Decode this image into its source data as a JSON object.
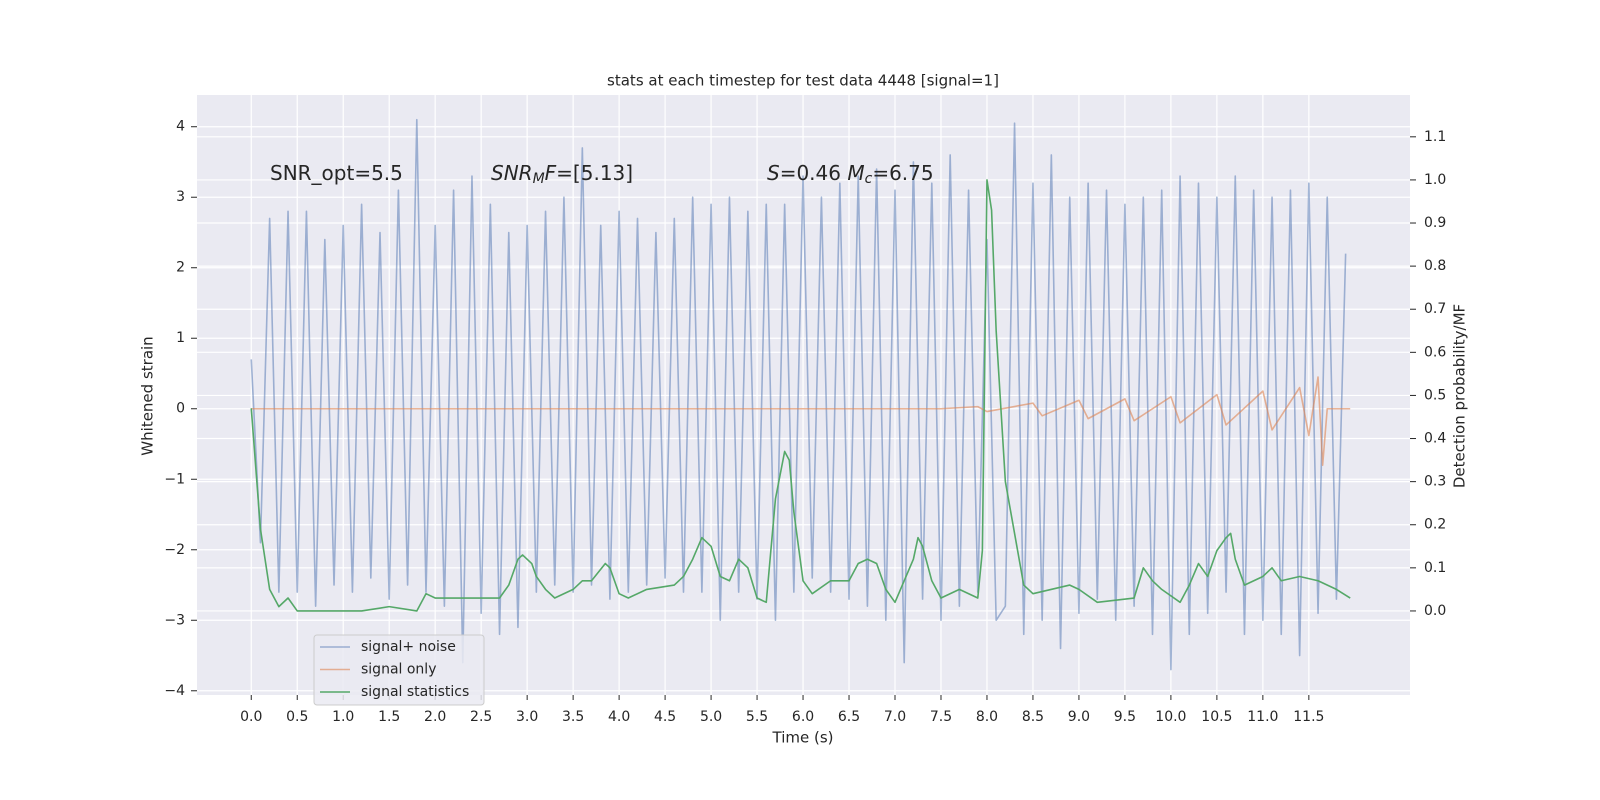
{
  "chart_data": {
    "type": "line",
    "title": "stats at each timestep for test data 4448 [signal=1]",
    "xlabel": "Time (s)",
    "ylabel": "Whitened strain",
    "y2label": "Detection probability/MF",
    "xlim": [
      -0.59,
      12.6
    ],
    "ylim": [
      -4.06,
      4.45
    ],
    "y2lim": [
      -0.195,
      1.197
    ],
    "xticks": [
      {
        "value": 0,
        "label": "0.0"
      },
      0.5,
      {
        "value": 1,
        "label": "1.0"
      },
      1.5,
      {
        "value": 2,
        "label": "2.0"
      },
      2.5,
      {
        "value": 3,
        "label": "3.0"
      },
      3.5,
      {
        "value": 4,
        "label": "4.0"
      },
      4.5,
      {
        "value": 5,
        "label": "5.0"
      },
      5.5,
      {
        "value": 6,
        "label": "6.0"
      },
      6.5,
      {
        "value": 7,
        "label": "7.0"
      },
      7.5,
      {
        "value": 8,
        "label": "8.0"
      },
      8.5,
      {
        "value": 9,
        "label": "9.0"
      },
      9.5,
      {
        "value": 10,
        "label": "10.0"
      },
      10.5,
      {
        "value": 11,
        "label": "11.0"
      },
      11.5
    ],
    "yticks": [
      {
        "value": -4,
        "label": "−4"
      },
      {
        "value": -3,
        "label": "−3"
      },
      {
        "value": -2,
        "label": "−2"
      },
      {
        "value": -1,
        "label": "−1"
      },
      0,
      1,
      2,
      3,
      4
    ],
    "y2ticks": [
      {
        "value": 0,
        "label": "0.0"
      },
      0.1,
      0.2,
      0.3,
      0.4,
      0.5,
      0.6,
      0.7,
      0.8,
      0.9,
      {
        "value": 1,
        "label": "1.0"
      },
      1.1
    ],
    "grid": true,
    "legend": "lower left",
    "annotations": [
      [
        {
          "text": "SNR_opt=5.5"
        }
      ],
      [
        {
          "text": "SNR",
          "italic": true
        },
        {
          "text": "M",
          "italic": true,
          "sub": true
        },
        {
          "text": "F",
          "italic": true
        },
        {
          "text": "=[5.13]"
        }
      ],
      [
        {
          "text": "S",
          "italic": true
        },
        {
          "text": "=0.46   "
        },
        {
          "text": "M",
          "italic": true
        },
        {
          "text": "c",
          "italic": true,
          "sub": true
        },
        {
          "text": "=6.75"
        }
      ]
    ],
    "series": [
      {
        "name": "signal+ noise",
        "color": "#4c72b0",
        "opacity": 0.5,
        "axis": "y",
        "x": [
          0.0,
          0.1,
          0.2,
          0.3,
          0.4,
          0.5,
          0.6,
          0.7,
          0.8,
          0.9,
          1.0,
          1.1,
          1.2,
          1.3,
          1.4,
          1.5,
          1.6,
          1.7,
          1.8,
          1.9,
          2.0,
          2.1,
          2.2,
          2.3,
          2.4,
          2.5,
          2.6,
          2.7,
          2.8,
          2.9,
          3.0,
          3.1,
          3.2,
          3.3,
          3.4,
          3.5,
          3.6,
          3.7,
          3.8,
          3.9,
          4.0,
          4.1,
          4.2,
          4.3,
          4.4,
          4.5,
          4.6,
          4.7,
          4.8,
          4.9,
          5.0,
          5.1,
          5.2,
          5.3,
          5.4,
          5.5,
          5.6,
          5.7,
          5.8,
          5.9,
          6.0,
          6.1,
          6.2,
          6.3,
          6.4,
          6.5,
          6.6,
          6.7,
          6.8,
          6.9,
          7.0,
          7.1,
          7.2,
          7.3,
          7.4,
          7.5,
          7.6,
          7.7,
          7.8,
          7.9,
          8.0,
          8.1,
          8.2,
          8.3,
          8.4,
          8.5,
          8.6,
          8.7,
          8.8,
          8.9,
          9.0,
          9.1,
          9.2,
          9.3,
          9.4,
          9.5,
          9.6,
          9.7,
          9.8,
          9.9,
          10.0,
          10.1,
          10.2,
          10.3,
          10.4,
          10.5,
          10.6,
          10.7,
          10.8,
          10.9,
          11.0,
          11.1,
          11.2,
          11.3,
          11.4,
          11.5,
          11.6,
          11.7,
          11.8,
          11.9
        ],
        "values": [
          0.7,
          -1.9,
          2.7,
          -2.6,
          2.8,
          -2.6,
          2.8,
          -2.8,
          2.4,
          -2.5,
          2.6,
          -2.6,
          2.9,
          -2.4,
          2.5,
          -2.7,
          3.1,
          -2.5,
          4.1,
          -2.6,
          2.6,
          -2.8,
          3.1,
          -3.6,
          3.3,
          -2.9,
          2.9,
          -3.2,
          2.5,
          -3.1,
          2.6,
          -2.6,
          2.8,
          -2.5,
          3.0,
          -2.6,
          3.7,
          -2.5,
          2.6,
          -2.7,
          2.8,
          -2.6,
          2.7,
          -2.5,
          2.5,
          -2.4,
          2.7,
          -2.6,
          3.0,
          -2.6,
          2.9,
          -3.0,
          3.0,
          -2.6,
          2.8,
          -2.7,
          2.9,
          -3.0,
          2.9,
          -2.6,
          3.3,
          -2.4,
          3.0,
          -2.6,
          3.2,
          -2.7,
          3.3,
          -2.8,
          3.4,
          -3.0,
          3.1,
          -3.6,
          3.5,
          -2.7,
          3.2,
          -3.0,
          3.6,
          -2.8,
          3.1,
          -2.6,
          2.4,
          -3.0,
          -2.8,
          4.05,
          -3.2,
          3.2,
          -3.0,
          3.6,
          -3.4,
          3.0,
          -2.9,
          3.2,
          -2.7,
          3.1,
          -3.0,
          2.9,
          -2.8,
          3.0,
          -3.2,
          3.1,
          -3.7,
          3.3,
          -3.2,
          3.2,
          -2.9,
          3.0,
          -2.6,
          3.3,
          -3.2,
          3.1,
          -3.0,
          3.0,
          -3.2,
          3.1,
          -3.5,
          3.2,
          -2.9,
          3.0,
          -2.7,
          2.2
        ]
      },
      {
        "name": "signal only",
        "color": "#dd8452",
        "opacity": 0.6,
        "axis": "y",
        "x": [
          0,
          7.5,
          7.9,
          8.0,
          8.5,
          8.6,
          9.0,
          9.1,
          9.5,
          9.6,
          10.0,
          10.1,
          10.5,
          10.6,
          11.0,
          11.1,
          11.4,
          11.5,
          11.6,
          11.65,
          11.7,
          11.95
        ],
        "values": [
          0,
          0,
          0.03,
          -0.04,
          0.08,
          -0.1,
          0.12,
          -0.14,
          0.14,
          -0.17,
          0.17,
          -0.2,
          0.2,
          -0.23,
          0.25,
          -0.3,
          0.3,
          -0.38,
          0.45,
          -0.8,
          0,
          0
        ]
      },
      {
        "name": "signal statistics",
        "color": "#55a868",
        "opacity": 1,
        "axis": "y2",
        "x": [
          0,
          0.1,
          0.2,
          0.3,
          0.4,
          0.5,
          0.8,
          1.2,
          1.5,
          1.8,
          1.9,
          2.0,
          2.2,
          2.5,
          2.7,
          2.8,
          2.9,
          2.95,
          3.05,
          3.1,
          3.2,
          3.3,
          3.5,
          3.6,
          3.7,
          3.85,
          3.9,
          4.0,
          4.1,
          4.3,
          4.6,
          4.7,
          4.8,
          4.9,
          5.0,
          5.1,
          5.2,
          5.3,
          5.4,
          5.5,
          5.6,
          5.7,
          5.8,
          5.85,
          5.9,
          6.0,
          6.1,
          6.3,
          6.5,
          6.6,
          6.7,
          6.8,
          6.9,
          7.0,
          7.2,
          7.25,
          7.3,
          7.4,
          7.5,
          7.7,
          7.9,
          7.95,
          8.0,
          8.05,
          8.1,
          8.2,
          8.4,
          8.5,
          8.9,
          9.0,
          9.2,
          9.6,
          9.7,
          9.8,
          9.9,
          10.1,
          10.2,
          10.3,
          10.4,
          10.5,
          10.6,
          10.65,
          10.7,
          10.8,
          11.0,
          11.1,
          11.2,
          11.4,
          11.6,
          11.8,
          11.95
        ],
        "values": [
          0.47,
          0.19,
          0.05,
          0.01,
          0.03,
          0.0,
          0.0,
          0.0,
          0.01,
          0.0,
          0.04,
          0.03,
          0.03,
          0.03,
          0.03,
          0.06,
          0.12,
          0.13,
          0.11,
          0.08,
          0.05,
          0.03,
          0.05,
          0.07,
          0.07,
          0.11,
          0.1,
          0.04,
          0.03,
          0.05,
          0.06,
          0.08,
          0.12,
          0.17,
          0.15,
          0.08,
          0.07,
          0.12,
          0.1,
          0.03,
          0.02,
          0.26,
          0.37,
          0.35,
          0.23,
          0.07,
          0.04,
          0.07,
          0.07,
          0.11,
          0.12,
          0.11,
          0.05,
          0.02,
          0.12,
          0.17,
          0.15,
          0.07,
          0.03,
          0.05,
          0.03,
          0.14,
          1.0,
          0.93,
          0.65,
          0.3,
          0.06,
          0.04,
          0.06,
          0.05,
          0.02,
          0.03,
          0.1,
          0.07,
          0.05,
          0.02,
          0.06,
          0.11,
          0.08,
          0.14,
          0.17,
          0.18,
          0.12,
          0.06,
          0.08,
          0.1,
          0.07,
          0.08,
          0.07,
          0.05,
          0.03
        ]
      }
    ]
  }
}
